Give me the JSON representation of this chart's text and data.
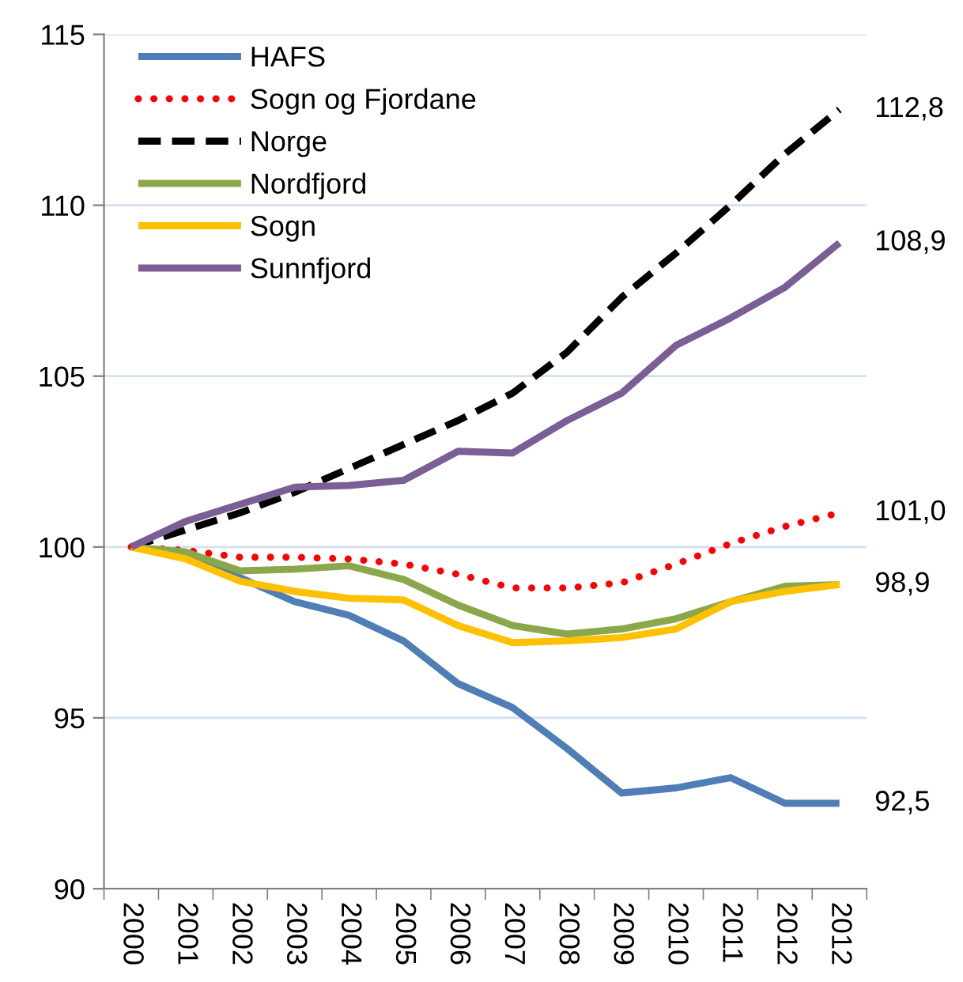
{
  "chart_data": {
    "type": "line",
    "categories": [
      "2000",
      "2001",
      "2002",
      "2003",
      "2004",
      "2005",
      "2006",
      "2007",
      "2008",
      "2009",
      "2010",
      "2011",
      "2012",
      "2012"
    ],
    "series": [
      {
        "name": "HAFS",
        "color": "#4f7db5",
        "line_style": "solid",
        "values": [
          100,
          99.8,
          99.1,
          98.4,
          98.0,
          97.25,
          96.0,
          95.3,
          94.1,
          92.8,
          92.95,
          93.25,
          92.5,
          92.5
        ],
        "value_labels": [
          null,
          null,
          null,
          null,
          null,
          null,
          null,
          null,
          null,
          null,
          null,
          null,
          null,
          "92,5"
        ]
      },
      {
        "name": "Sogn og Fjordane",
        "color": "#ff0000",
        "line_style": "dotted",
        "values": [
          100,
          99.9,
          99.7,
          99.7,
          99.65,
          99.5,
          99.2,
          98.8,
          98.8,
          98.95,
          99.5,
          100.1,
          100.6,
          101.0
        ],
        "value_labels": [
          null,
          null,
          null,
          null,
          null,
          null,
          null,
          null,
          null,
          null,
          null,
          null,
          null,
          "101,0"
        ]
      },
      {
        "name": "Norge",
        "color": "#000000",
        "line_style": "dashed",
        "values": [
          100,
          100.5,
          101.0,
          101.6,
          102.3,
          103.0,
          103.7,
          104.5,
          105.7,
          107.3,
          108.6,
          110.0,
          111.5,
          112.8
        ],
        "value_labels": [
          null,
          null,
          null,
          null,
          null,
          null,
          null,
          null,
          null,
          null,
          null,
          null,
          null,
          "112,8"
        ]
      },
      {
        "name": "Nordfjord",
        "color": "#8aa84b",
        "line_style": "solid",
        "values": [
          100,
          99.85,
          99.3,
          99.35,
          99.45,
          99.05,
          98.3,
          97.7,
          97.45,
          97.6,
          97.9,
          98.4,
          98.85,
          98.9
        ],
        "value_labels": [
          null,
          null,
          null,
          null,
          null,
          null,
          null,
          null,
          null,
          null,
          null,
          null,
          null,
          null
        ]
      },
      {
        "name": "Sogn",
        "color": "#ffc000",
        "line_style": "solid",
        "values": [
          100,
          99.65,
          99.0,
          98.7,
          98.5,
          98.45,
          97.7,
          97.2,
          97.25,
          97.35,
          97.6,
          98.4,
          98.7,
          98.9
        ],
        "value_labels": [
          null,
          null,
          null,
          null,
          null,
          null,
          null,
          null,
          null,
          null,
          null,
          null,
          null,
          "98,9"
        ]
      },
      {
        "name": "Sunnfjord",
        "color": "#7a5f96",
        "line_style": "solid",
        "values": [
          100,
          100.75,
          101.25,
          101.75,
          101.8,
          101.95,
          102.8,
          102.75,
          103.7,
          104.5,
          105.9,
          106.7,
          107.6,
          108.9
        ],
        "value_labels": [
          null,
          null,
          null,
          null,
          null,
          null,
          null,
          null,
          null,
          null,
          null,
          null,
          null,
          "108,9"
        ]
      }
    ],
    "ylim": [
      90,
      115
    ],
    "yticks": [
      90,
      95,
      100,
      105,
      110,
      115
    ],
    "grid": "y",
    "legend": "top left",
    "marker": "none"
  }
}
